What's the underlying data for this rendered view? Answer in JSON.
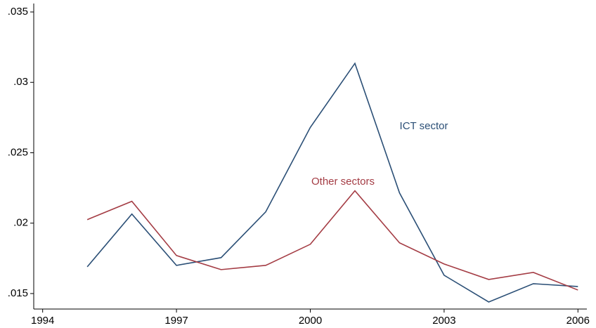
{
  "chart_data": {
    "type": "line",
    "x": [
      1995,
      1996,
      1997,
      1998,
      1999,
      2000,
      2001,
      2002,
      2003,
      2004,
      2005,
      2006
    ],
    "series": [
      {
        "name": "ICT sector",
        "color": "#2b4f76",
        "values": [
          0.0169,
          0.02065,
          0.017,
          0.01755,
          0.0208,
          0.0268,
          0.03135,
          0.02215,
          0.0163,
          0.0144,
          0.0157,
          0.0155
        ]
      },
      {
        "name": "Other sectors",
        "color": "#a43c44",
        "values": [
          0.02025,
          0.02155,
          0.0177,
          0.0167,
          0.017,
          0.0185,
          0.0223,
          0.0186,
          0.0171,
          0.016,
          0.0165,
          0.01525
        ]
      }
    ],
    "xlim": [
      1993.8,
      2006.2
    ],
    "xticks": [
      1994,
      1997,
      2000,
      2003,
      2006
    ],
    "ylim": [
      0.0139,
      0.0356
    ],
    "yticks": [
      {
        "value": 0.015,
        "label": ".015"
      },
      {
        "value": 0.02,
        "label": ".02"
      },
      {
        "value": 0.025,
        "label": ".025"
      },
      {
        "value": 0.03,
        "label": ".03"
      },
      {
        "value": 0.035,
        "label": ".035"
      }
    ],
    "grid": false
  }
}
